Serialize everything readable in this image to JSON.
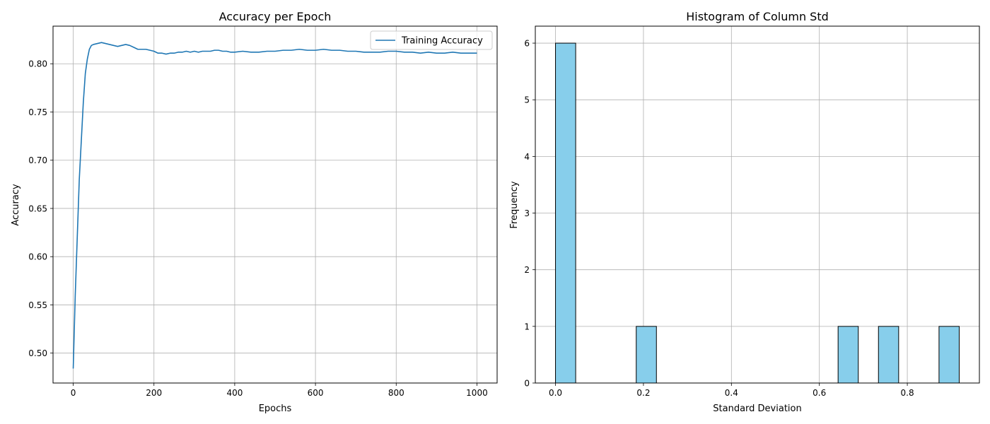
{
  "figure": {
    "background": "#ffffff"
  },
  "chart_data": [
    {
      "type": "line",
      "title": "Accuracy per Epoch",
      "xlabel": "Epochs",
      "ylabel": "Accuracy",
      "xlim": [
        -50,
        1050
      ],
      "ylim": [
        0.469,
        0.839
      ],
      "xticks": [
        0,
        200,
        400,
        600,
        800,
        1000
      ],
      "xtick_labels": [
        "0",
        "200",
        "400",
        "600",
        "800",
        "1000"
      ],
      "yticks": [
        0.5,
        0.55,
        0.6,
        0.65,
        0.7,
        0.75,
        0.8
      ],
      "ytick_labels": [
        "0.50",
        "0.55",
        "0.60",
        "0.65",
        "0.70",
        "0.75",
        "0.80"
      ],
      "grid": true,
      "legend": "upper right",
      "series": [
        {
          "name": "Training Accuracy",
          "color": "#1f77b4",
          "x": [
            0,
            5,
            10,
            15,
            20,
            25,
            30,
            35,
            40,
            45,
            50,
            60,
            70,
            80,
            90,
            100,
            110,
            120,
            130,
            140,
            150,
            160,
            170,
            180,
            190,
            200,
            210,
            220,
            230,
            240,
            250,
            260,
            270,
            280,
            290,
            300,
            310,
            320,
            330,
            340,
            350,
            360,
            370,
            380,
            390,
            400,
            420,
            440,
            460,
            480,
            500,
            520,
            540,
            560,
            580,
            600,
            620,
            640,
            660,
            680,
            700,
            720,
            740,
            760,
            780,
            800,
            820,
            840,
            860,
            880,
            900,
            920,
            940,
            960,
            980,
            1000
          ],
          "y": [
            0.484,
            0.56,
            0.62,
            0.68,
            0.72,
            0.76,
            0.79,
            0.805,
            0.815,
            0.819,
            0.82,
            0.821,
            0.822,
            0.821,
            0.82,
            0.819,
            0.818,
            0.819,
            0.82,
            0.819,
            0.817,
            0.815,
            0.815,
            0.815,
            0.814,
            0.813,
            0.811,
            0.811,
            0.81,
            0.811,
            0.811,
            0.812,
            0.812,
            0.813,
            0.812,
            0.813,
            0.812,
            0.813,
            0.813,
            0.813,
            0.814,
            0.814,
            0.813,
            0.813,
            0.812,
            0.812,
            0.813,
            0.812,
            0.812,
            0.813,
            0.813,
            0.814,
            0.814,
            0.815,
            0.814,
            0.814,
            0.815,
            0.814,
            0.814,
            0.813,
            0.813,
            0.812,
            0.812,
            0.812,
            0.813,
            0.813,
            0.812,
            0.812,
            0.811,
            0.812,
            0.811,
            0.811,
            0.812,
            0.811,
            0.811,
            0.811
          ]
        }
      ]
    },
    {
      "type": "bar",
      "title": "Histogram of Column Std",
      "xlabel": "Standard Deviation",
      "ylabel": "Frequency",
      "xlim": [
        -0.0459,
        0.9639
      ],
      "ylim": [
        0,
        6.3
      ],
      "xticks": [
        0.0,
        0.2,
        0.4,
        0.6,
        0.8
      ],
      "xtick_labels": [
        "0.0",
        "0.2",
        "0.4",
        "0.6",
        "0.8"
      ],
      "yticks": [
        0,
        1,
        2,
        3,
        4,
        5,
        6
      ],
      "ytick_labels": [
        "0",
        "1",
        "2",
        "3",
        "4",
        "5",
        "6"
      ],
      "grid": true,
      "bar_color": "#87ceeb",
      "edge_color": "#000000",
      "bin_edges": [
        0.0,
        0.0459,
        0.0918,
        0.1377,
        0.1836,
        0.2295,
        0.2754,
        0.3213,
        0.3672,
        0.4131,
        0.459,
        0.5049,
        0.5508,
        0.5967,
        0.6426,
        0.6885,
        0.7344,
        0.7803,
        0.8262,
        0.8721,
        0.918
      ],
      "counts": [
        6,
        0,
        0,
        0,
        1,
        0,
        0,
        0,
        0,
        0,
        0,
        0,
        0,
        0,
        1,
        0,
        1,
        0,
        0,
        1
      ]
    }
  ]
}
